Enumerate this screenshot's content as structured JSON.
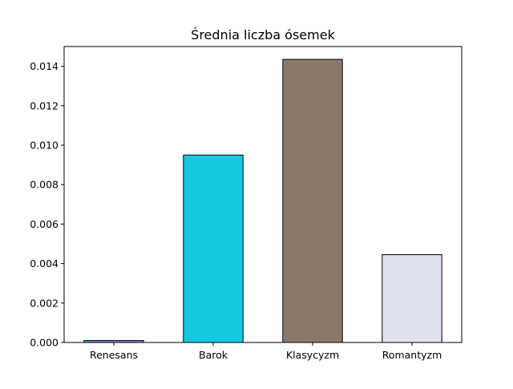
{
  "chart_data": {
    "type": "bar",
    "title": "Średnia liczba ósemek",
    "xlabel": "",
    "ylabel": "",
    "categories": [
      "Renesans",
      "Barok",
      "Klasycyzm",
      "Romantyzm"
    ],
    "values": [
      0.0001,
      0.0095,
      0.01435,
      0.00445
    ],
    "colors": [
      "#17becf",
      "#17c9dc",
      "#8c786a",
      "#dde2ee"
    ],
    "edge_color": "#000000",
    "ylim": [
      0,
      0.015
    ],
    "yticks": [
      0.0,
      0.002,
      0.004,
      0.006,
      0.008,
      0.01,
      0.012,
      0.014
    ],
    "ytick_labels": [
      "0.000",
      "0.002",
      "0.004",
      "0.006",
      "0.008",
      "0.010",
      "0.012",
      "0.014"
    ],
    "grid": false,
    "legend": "none"
  }
}
